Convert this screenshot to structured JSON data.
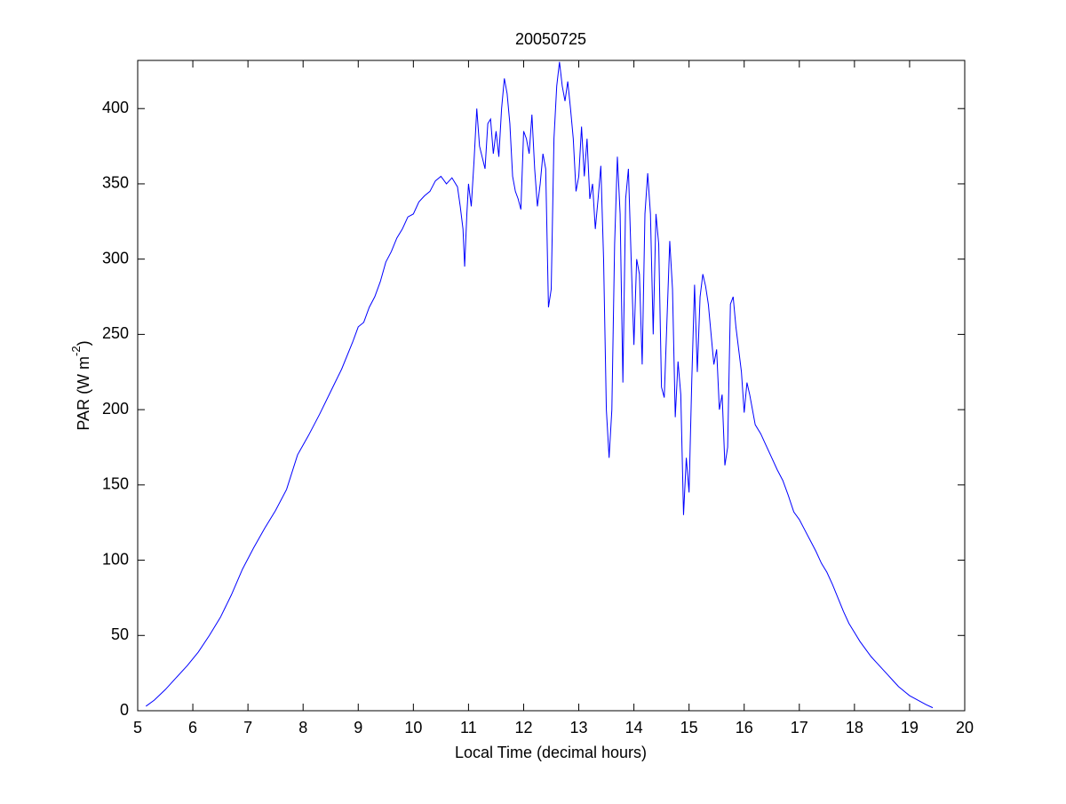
{
  "chart_data": {
    "type": "line",
    "title": "20050725",
    "x_label": "Local Time (decimal hours)",
    "y_label": "PAR (W m",
    "y_label_superscript": "-2",
    "y_label_end": ")",
    "xlim": [
      5,
      20
    ],
    "xticks": [
      5,
      6,
      7,
      8,
      9,
      10,
      11,
      12,
      13,
      14,
      15,
      16,
      17,
      18,
      19,
      20
    ],
    "ylim": [
      0,
      432
    ],
    "yticks": [
      0,
      50,
      100,
      150,
      200,
      250,
      300,
      350,
      400
    ],
    "grid": false,
    "series": [
      {
        "color": "#0000ff",
        "x": [
          5.15,
          5.3,
          5.5,
          5.7,
          5.9,
          6.1,
          6.3,
          6.5,
          6.7,
          6.9,
          7.1,
          7.3,
          7.5,
          7.7,
          7.9,
          8.1,
          8.3,
          8.5,
          8.7,
          8.9,
          9.0,
          9.1,
          9.2,
          9.3,
          9.4,
          9.5,
          9.6,
          9.7,
          9.8,
          9.9,
          10.0,
          10.1,
          10.2,
          10.3,
          10.4,
          10.5,
          10.6,
          10.7,
          10.8,
          10.85,
          10.9,
          10.93,
          10.97,
          11.0,
          11.05,
          11.1,
          11.15,
          11.2,
          11.3,
          11.35,
          11.4,
          11.45,
          11.5,
          11.55,
          11.6,
          11.65,
          11.7,
          11.75,
          11.8,
          11.85,
          11.9,
          11.95,
          12.0,
          12.05,
          12.1,
          12.15,
          12.2,
          12.25,
          12.3,
          12.35,
          12.4,
          12.45,
          12.5,
          12.55,
          12.6,
          12.65,
          12.7,
          12.75,
          12.8,
          12.85,
          12.9,
          12.95,
          13.0,
          13.05,
          13.1,
          13.15,
          13.2,
          13.25,
          13.3,
          13.35,
          13.4,
          13.45,
          13.5,
          13.55,
          13.6,
          13.65,
          13.7,
          13.75,
          13.8,
          13.85,
          13.9,
          13.95,
          14.0,
          14.05,
          14.1,
          14.15,
          14.2,
          14.25,
          14.3,
          14.35,
          14.4,
          14.45,
          14.5,
          14.55,
          14.6,
          14.65,
          14.7,
          14.75,
          14.8,
          14.85,
          14.9,
          14.95,
          15.0,
          15.05,
          15.1,
          15.15,
          15.2,
          15.25,
          15.3,
          15.35,
          15.4,
          15.45,
          15.5,
          15.55,
          15.6,
          15.65,
          15.7,
          15.75,
          15.8,
          15.85,
          15.9,
          15.95,
          16.0,
          16.05,
          16.1,
          16.2,
          16.3,
          16.4,
          16.5,
          16.6,
          16.7,
          16.8,
          16.9,
          17.0,
          17.1,
          17.2,
          17.3,
          17.4,
          17.5,
          17.6,
          17.7,
          17.8,
          17.9,
          18.0,
          18.1,
          18.2,
          18.3,
          18.4,
          18.5,
          18.6,
          18.7,
          18.8,
          18.9,
          19.0,
          19.1,
          19.2,
          19.3,
          19.42
        ],
        "values": [
          3,
          7,
          14,
          22,
          30,
          39,
          50,
          62,
          77,
          94,
          108,
          121,
          133,
          147,
          170,
          183,
          197,
          212,
          227,
          245,
          255,
          258,
          268,
          275,
          285,
          298,
          305,
          314,
          320,
          328,
          330,
          338,
          342,
          345,
          352,
          355,
          350,
          354,
          348,
          335,
          320,
          295,
          330,
          350,
          335,
          365,
          400,
          375,
          360,
          390,
          393,
          370,
          385,
          368,
          400,
          420,
          410,
          390,
          355,
          345,
          340,
          333,
          385,
          380,
          370,
          396,
          360,
          335,
          350,
          370,
          360,
          268,
          280,
          380,
          415,
          431,
          415,
          405,
          418,
          400,
          380,
          345,
          355,
          388,
          355,
          380,
          340,
          350,
          320,
          340,
          362,
          300,
          200,
          168,
          200,
          310,
          368,
          330,
          218,
          340,
          360,
          300,
          243,
          300,
          290,
          230,
          330,
          357,
          330,
          250,
          330,
          310,
          215,
          208,
          260,
          312,
          280,
          195,
          232,
          210,
          130,
          168,
          145,
          220,
          283,
          225,
          275,
          290,
          282,
          270,
          250,
          230,
          240,
          200,
          210,
          163,
          175,
          270,
          275,
          255,
          240,
          225,
          198,
          218,
          210,
          190,
          184,
          176,
          168,
          160,
          153,
          143,
          132,
          127,
          120,
          113,
          106,
          98,
          92,
          84,
          75,
          66,
          58,
          52,
          46,
          41,
          36,
          32,
          28,
          24,
          20,
          16,
          13,
          10,
          8,
          6,
          4,
          2
        ]
      }
    ]
  }
}
